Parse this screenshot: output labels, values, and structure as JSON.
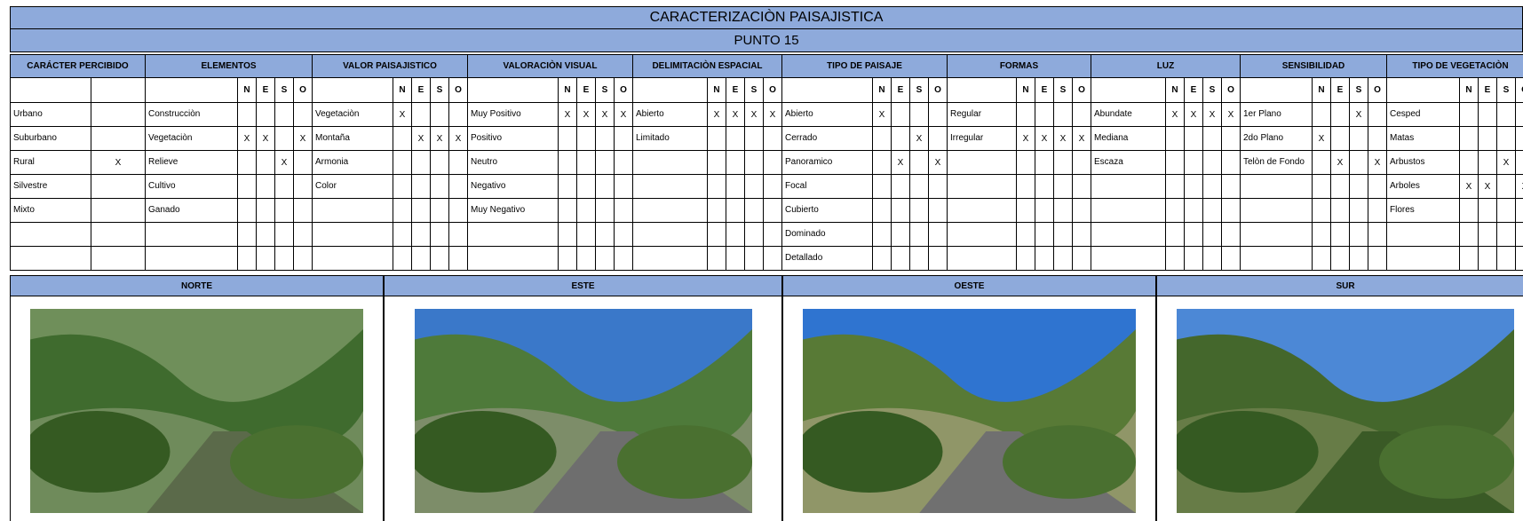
{
  "title": "CARACTERIZACIÒN PAISAJISTICA",
  "subtitle": "PUNTO 15",
  "sections": [
    {
      "title": "CARÁCTER PERCIBIDO",
      "rows": [
        {
          "label": "Urbano",
          "marks": [
            null
          ]
        },
        {
          "label": "Suburbano",
          "marks": [
            null
          ]
        },
        {
          "label": "Rural",
          "marks": [
            "X"
          ]
        },
        {
          "label": "Silvestre",
          "marks": [
            null
          ]
        },
        {
          "label": "Mixto",
          "marks": [
            null
          ]
        }
      ]
    },
    {
      "title": "ELEMENTOS",
      "columns": [
        "N",
        "E",
        "S",
        "O"
      ],
      "rows": [
        {
          "label": "Construcciòn",
          "marks": [
            null,
            null,
            null,
            null
          ]
        },
        {
          "label": "Vegetaciòn",
          "marks": [
            "X",
            "X",
            null,
            "X"
          ]
        },
        {
          "label": "Relieve",
          "marks": [
            null,
            null,
            "X",
            null
          ]
        },
        {
          "label": "Cultivo",
          "marks": [
            null,
            null,
            null,
            null
          ]
        },
        {
          "label": "Ganado",
          "marks": [
            null,
            null,
            null,
            null
          ]
        }
      ]
    },
    {
      "title": "VALOR PAISAJISTICO",
      "columns": [
        "N",
        "E",
        "S",
        "O"
      ],
      "rows": [
        {
          "label": "Vegetaciòn",
          "marks": [
            "X",
            null,
            null,
            null
          ]
        },
        {
          "label": "Montaña",
          "marks": [
            null,
            "X",
            "X",
            "X"
          ]
        },
        {
          "label": "Armonia",
          "marks": [
            null,
            null,
            null,
            null
          ]
        },
        {
          "label": "Color",
          "marks": [
            null,
            null,
            null,
            null
          ]
        }
      ]
    },
    {
      "title": "VALORACIÒN VISUAL",
      "columns": [
        "N",
        "E",
        "S",
        "O"
      ],
      "rows": [
        {
          "label": "Muy Positivo",
          "marks": [
            "X",
            "X",
            "X",
            "X"
          ]
        },
        {
          "label": "Positivo",
          "marks": [
            null,
            null,
            null,
            null
          ]
        },
        {
          "label": "Neutro",
          "marks": [
            null,
            null,
            null,
            null
          ]
        },
        {
          "label": "Negativo",
          "marks": [
            null,
            null,
            null,
            null
          ]
        },
        {
          "label": "Muy Negativo",
          "marks": [
            null,
            null,
            null,
            null
          ]
        }
      ]
    },
    {
      "title": "DELIMITACIÒN ESPACIAL",
      "columns": [
        "N",
        "E",
        "S",
        "O"
      ],
      "rows": [
        {
          "label": "Abierto",
          "marks": [
            "X",
            "X",
            "X",
            "X"
          ]
        },
        {
          "label": "Limitado",
          "marks": [
            null,
            null,
            null,
            null
          ]
        }
      ]
    },
    {
      "title": "TIPO DE PAISAJE",
      "columns": [
        "N",
        "E",
        "S",
        "O"
      ],
      "rows": [
        {
          "label": "Abierto",
          "marks": [
            "X",
            null,
            null,
            null
          ]
        },
        {
          "label": "Cerrado",
          "marks": [
            null,
            null,
            "X",
            null
          ]
        },
        {
          "label": "Panoramico",
          "marks": [
            null,
            "X",
            null,
            "X"
          ]
        },
        {
          "label": "Focal",
          "marks": [
            null,
            null,
            null,
            null
          ]
        },
        {
          "label": "Cubierto",
          "marks": [
            null,
            null,
            null,
            null
          ]
        },
        {
          "label": "Dominado",
          "marks": [
            null,
            null,
            null,
            null
          ]
        },
        {
          "label": "Detallado",
          "marks": [
            null,
            null,
            null,
            null
          ]
        }
      ]
    },
    {
      "title": "FORMAS",
      "columns": [
        "N",
        "E",
        "S",
        "O"
      ],
      "rows": [
        {
          "label": "Regular",
          "marks": [
            null,
            null,
            null,
            null
          ]
        },
        {
          "label": "Irregular",
          "marks": [
            "X",
            "X",
            "X",
            "X"
          ]
        }
      ]
    },
    {
      "title": "LUZ",
      "columns": [
        "N",
        "E",
        "S",
        "O"
      ],
      "rows": [
        {
          "label": "Abundate",
          "marks": [
            "X",
            "X",
            "X",
            "X"
          ]
        },
        {
          "label": "Mediana",
          "marks": [
            null,
            null,
            null,
            null
          ]
        },
        {
          "label": "Escaza",
          "marks": [
            null,
            null,
            null,
            null
          ]
        }
      ]
    },
    {
      "title": "SENSIBILIDAD",
      "columns": [
        "N",
        "E",
        "S",
        "O"
      ],
      "rows": [
        {
          "label": "1er Plano",
          "marks": [
            null,
            null,
            "X",
            null
          ]
        },
        {
          "label": "2do Plano",
          "marks": [
            "X",
            null,
            null,
            null
          ]
        },
        {
          "label": "Telòn de Fondo",
          "marks": [
            null,
            "X",
            null,
            "X"
          ]
        }
      ]
    },
    {
      "title": "TIPO DE VEGETACIÒN",
      "columns": [
        "N",
        "E",
        "S",
        "O"
      ],
      "rows": [
        {
          "label": "Cesped",
          "marks": [
            null,
            null,
            null,
            null
          ]
        },
        {
          "label": "Matas",
          "marks": [
            null,
            null,
            null,
            null
          ]
        },
        {
          "label": "Arbustos",
          "marks": [
            null,
            null,
            "X",
            null
          ]
        },
        {
          "label": "Arboles",
          "marks": [
            "X",
            "X",
            null,
            "X"
          ]
        },
        {
          "label": "Flores",
          "marks": [
            null,
            null,
            null,
            null
          ]
        }
      ]
    }
  ],
  "photos": [
    {
      "label": "NORTE"
    },
    {
      "label": "ESTE"
    },
    {
      "label": "OESTE"
    },
    {
      "label": "SUR"
    }
  ]
}
